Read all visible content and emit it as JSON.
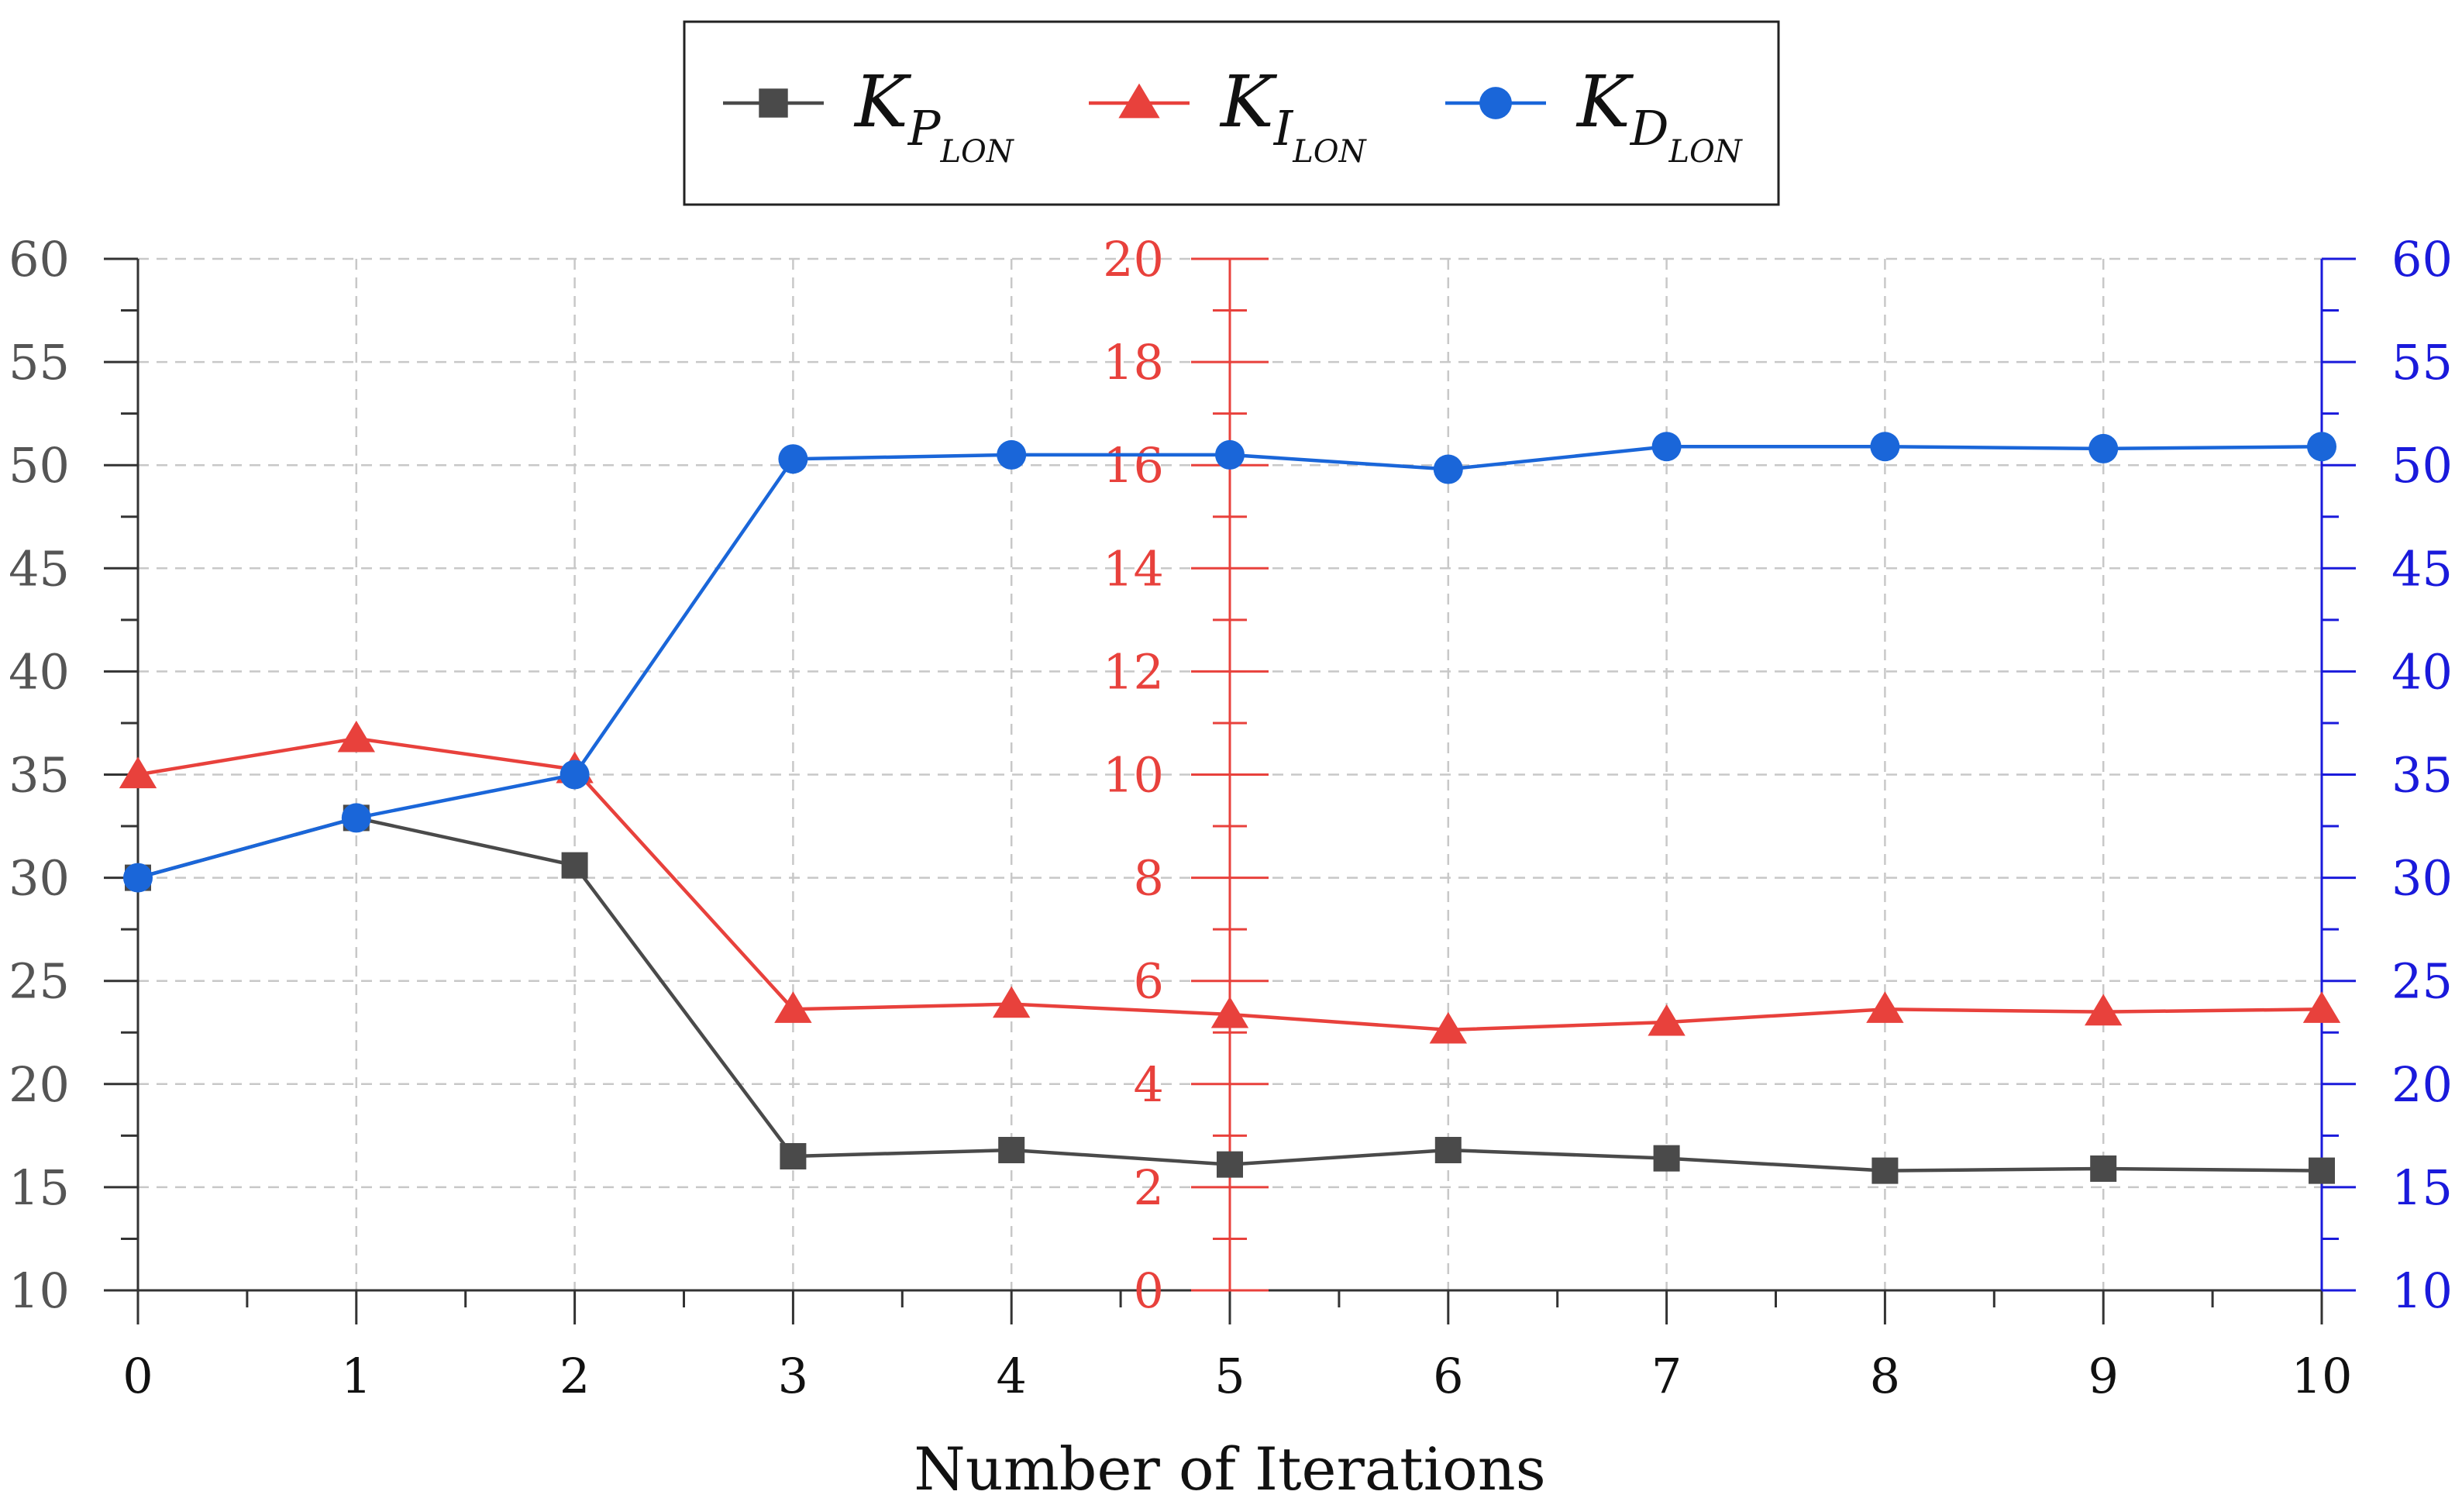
{
  "chart_data": {
    "type": "line",
    "title": "",
    "xlabel": "Number of Iterations",
    "ylabel": "",
    "x": [
      0,
      1,
      2,
      3,
      4,
      5,
      6,
      7,
      8,
      9,
      10
    ],
    "xlim": [
      0,
      10
    ],
    "x_ticks": [
      "0",
      "1",
      "2",
      "3",
      "4",
      "5",
      "6",
      "7",
      "8",
      "9",
      "10"
    ],
    "grid": true,
    "legend_position": "top-center",
    "axes": {
      "left": {
        "range": [
          10,
          60
        ],
        "ticks": [
          "10",
          "15",
          "20",
          "25",
          "30",
          "35",
          "40",
          "45",
          "50",
          "55",
          "60"
        ],
        "color": "#333333"
      },
      "middle": {
        "range": [
          0,
          20
        ],
        "ticks": [
          "0",
          "2",
          "4",
          "6",
          "8",
          "10",
          "12",
          "14",
          "16",
          "18",
          "20"
        ],
        "color": "#e8413c"
      },
      "right": {
        "range": [
          10,
          60
        ],
        "ticks": [
          "10",
          "15",
          "20",
          "25",
          "30",
          "35",
          "40",
          "45",
          "50",
          "55",
          "60"
        ],
        "color": "#1a1adb"
      }
    },
    "series": [
      {
        "name": "K_P_LON",
        "legend_main": "K",
        "legend_sub": "P",
        "legend_subsub": "LON",
        "axis": "left",
        "marker": "square",
        "color": "#4a4a4a",
        "values": [
          30.0,
          32.9,
          30.6,
          16.5,
          16.8,
          16.1,
          16.8,
          16.4,
          15.8,
          15.9,
          15.8
        ]
      },
      {
        "name": "K_I_LON",
        "legend_main": "K",
        "legend_sub": "I",
        "legend_subsub": "LON",
        "axis": "middle",
        "marker": "triangle",
        "color": "#e8413c",
        "values": [
          10.0,
          10.7,
          10.1,
          5.45,
          5.55,
          5.35,
          5.05,
          5.2,
          5.45,
          5.4,
          5.45
        ]
      },
      {
        "name": "K_D_LON",
        "legend_main": "K",
        "legend_sub": "D",
        "legend_subsub": "LON",
        "axis": "right",
        "marker": "circle",
        "color": "#1a66d9",
        "values": [
          30.0,
          32.9,
          35.0,
          50.3,
          50.5,
          50.5,
          49.8,
          50.9,
          50.9,
          50.8,
          50.9
        ]
      }
    ]
  }
}
